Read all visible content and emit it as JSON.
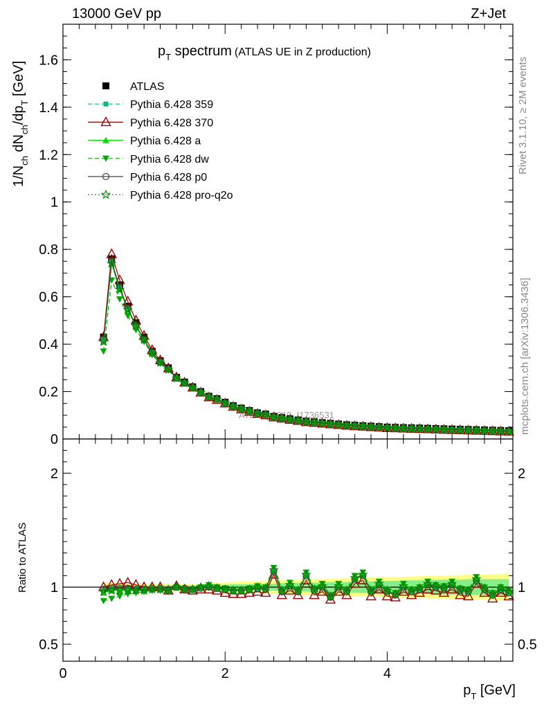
{
  "header": {
    "left": "13000 GeV pp",
    "right": "Z+Jet"
  },
  "title": {
    "main": "p",
    "main_sub": "T",
    "main_rest": " spectrum",
    "sub": "(ATLAS UE in Z production)"
  },
  "side": {
    "top": "Rivet 3.1.10, ≥ 2M events",
    "bottom": "mcplots.cern.ch [arXiv:1306.3436]"
  },
  "watermark": "ATLAS_2019_I1736531",
  "ylabel_main": {
    "a": "1/N",
    "a_sub": "ch",
    "b": " dN",
    "b_sub": "ch",
    "c": "/dp",
    "c_sub": "T",
    "d": " [GeV]"
  },
  "ylabel_ratio": "Ratio to ATLAS",
  "xlabel": {
    "a": "p",
    "a_sub": "T",
    "b": " [GeV]"
  },
  "legend": [
    {
      "label": "ATLAS",
      "color": "#000000",
      "marker": "square-filled",
      "line": "none"
    },
    {
      "label": "Pythia 6.428 359",
      "color": "#00bb88",
      "marker": "square-small",
      "line": "dashed"
    },
    {
      "label": "Pythia 6.428 370",
      "color": "#990000",
      "marker": "triangle-open",
      "line": "solid"
    },
    {
      "label": "Pythia 6.428 a",
      "color": "#00dd00",
      "marker": "triangle-filled",
      "line": "solid"
    },
    {
      "label": "Pythia 6.428 dw",
      "color": "#00aa00",
      "marker": "triangle-down-filled",
      "line": "dashed"
    },
    {
      "label": "Pythia 6.428 p0",
      "color": "#444444",
      "marker": "circle-open",
      "line": "solid"
    },
    {
      "label": "Pythia 6.428 pro-q2o",
      "color": "#008800",
      "marker": "star-open",
      "line": "dotted"
    }
  ],
  "chart_data": [
    {
      "type": "line",
      "xlim": [
        0,
        5.55
      ],
      "ylim": [
        0,
        1.75
      ],
      "yticks": [
        0,
        0.2,
        0.4,
        0.6,
        0.8,
        1,
        1.2,
        1.4,
        1.6
      ],
      "ytick_labels": [
        "0",
        "0.2",
        "0.4",
        "0.6",
        "0.8",
        "1",
        "1.2",
        "1.4",
        "1.6"
      ],
      "x": [
        0.5,
        0.6,
        0.7,
        0.8,
        0.9,
        1.0,
        1.1,
        1.2,
        1.3,
        1.4,
        1.5,
        1.6,
        1.7,
        1.8,
        1.9,
        2.0,
        2.1,
        2.2,
        2.3,
        2.4,
        2.5,
        2.6,
        2.7,
        2.8,
        2.9,
        3.0,
        3.1,
        3.2,
        3.3,
        3.4,
        3.5,
        3.6,
        3.7,
        3.8,
        3.9,
        4.0,
        4.1,
        4.2,
        4.3,
        4.4,
        4.5,
        4.6,
        4.7,
        4.8,
        4.9,
        5.0,
        5.1,
        5.2,
        5.3,
        5.4,
        5.5
      ],
      "series": [
        {
          "name": "ATLAS",
          "values": [
            0.43,
            0.76,
            0.65,
            0.56,
            0.49,
            0.43,
            0.37,
            0.33,
            0.3,
            0.26,
            0.24,
            0.22,
            0.2,
            0.18,
            0.17,
            0.155,
            0.14,
            0.13,
            0.12,
            0.11,
            0.105,
            0.095,
            0.09,
            0.085,
            0.08,
            0.075,
            0.072,
            0.069,
            0.066,
            0.063,
            0.06,
            0.058,
            0.056,
            0.054,
            0.052,
            0.05,
            0.049,
            0.048,
            0.047,
            0.046,
            0.045,
            0.044,
            0.043,
            0.042,
            0.041,
            0.04,
            0.039,
            0.038,
            0.037,
            0.036,
            0.035
          ]
        },
        {
          "name": "Pythia 6.428 359",
          "values": [
            0.42,
            0.75,
            0.64,
            0.55,
            0.48,
            0.42,
            0.365,
            0.325,
            0.295,
            0.258,
            0.238,
            0.218,
            0.198,
            0.178,
            0.168,
            0.152,
            0.138,
            0.128,
            0.118,
            0.108,
            0.103,
            0.093,
            0.088,
            0.083,
            0.078,
            0.073,
            0.07,
            0.067,
            0.064,
            0.061,
            0.058,
            0.056,
            0.054,
            0.052,
            0.05,
            0.048,
            0.047,
            0.046,
            0.045,
            0.044,
            0.043,
            0.042,
            0.041,
            0.04,
            0.039,
            0.038,
            0.037,
            0.036,
            0.035,
            0.034,
            0.033
          ]
        },
        {
          "name": "Pythia 6.428 370",
          "values": [
            0.43,
            0.78,
            0.67,
            0.58,
            0.5,
            0.435,
            0.375,
            0.332,
            0.298,
            0.26,
            0.238,
            0.217,
            0.196,
            0.176,
            0.165,
            0.15,
            0.136,
            0.125,
            0.115,
            0.106,
            0.1,
            0.091,
            0.086,
            0.081,
            0.076,
            0.071,
            0.068,
            0.065,
            0.062,
            0.059,
            0.056,
            0.054,
            0.052,
            0.05,
            0.048,
            0.046,
            0.045,
            0.044,
            0.043,
            0.042,
            0.041,
            0.04,
            0.039,
            0.038,
            0.037,
            0.036,
            0.035,
            0.034,
            0.033,
            0.032,
            0.031
          ]
        },
        {
          "name": "Pythia 6.428 a",
          "values": [
            0.41,
            0.74,
            0.63,
            0.545,
            0.475,
            0.418,
            0.362,
            0.322,
            0.293,
            0.256,
            0.236,
            0.216,
            0.196,
            0.177,
            0.167,
            0.151,
            0.137,
            0.127,
            0.117,
            0.107,
            0.102,
            0.092,
            0.087,
            0.082,
            0.077,
            0.072,
            0.069,
            0.066,
            0.063,
            0.06,
            0.057,
            0.055,
            0.053,
            0.051,
            0.049,
            0.047,
            0.046,
            0.045,
            0.044,
            0.043,
            0.042,
            0.041,
            0.04,
            0.039,
            0.038,
            0.037,
            0.036,
            0.035,
            0.034,
            0.033,
            0.032
          ]
        },
        {
          "name": "Pythia 6.428 dw",
          "values": [
            0.37,
            0.67,
            0.59,
            0.52,
            0.46,
            0.41,
            0.355,
            0.318,
            0.29,
            0.254,
            0.234,
            0.214,
            0.194,
            0.175,
            0.165,
            0.15,
            0.136,
            0.126,
            0.116,
            0.106,
            0.101,
            0.091,
            0.086,
            0.081,
            0.076,
            0.071,
            0.068,
            0.065,
            0.062,
            0.059,
            0.056,
            0.054,
            0.052,
            0.05,
            0.048,
            0.046,
            0.045,
            0.044,
            0.043,
            0.042,
            0.041,
            0.04,
            0.039,
            0.038,
            0.037,
            0.036,
            0.035,
            0.034,
            0.033,
            0.032,
            0.031
          ]
        },
        {
          "name": "Pythia 6.428 p0",
          "values": [
            0.42,
            0.75,
            0.64,
            0.55,
            0.48,
            0.42,
            0.365,
            0.325,
            0.295,
            0.258,
            0.237,
            0.217,
            0.197,
            0.178,
            0.168,
            0.152,
            0.138,
            0.128,
            0.118,
            0.108,
            0.103,
            0.093,
            0.088,
            0.083,
            0.078,
            0.073,
            0.07,
            0.067,
            0.064,
            0.061,
            0.058,
            0.056,
            0.054,
            0.052,
            0.05,
            0.048,
            0.047,
            0.046,
            0.045,
            0.044,
            0.043,
            0.042,
            0.041,
            0.04,
            0.039,
            0.038,
            0.037,
            0.036,
            0.035,
            0.034,
            0.033
          ]
        },
        {
          "name": "Pythia 6.428 pro-q2o",
          "values": [
            0.41,
            0.74,
            0.63,
            0.545,
            0.476,
            0.418,
            0.362,
            0.322,
            0.293,
            0.256,
            0.236,
            0.216,
            0.196,
            0.177,
            0.167,
            0.151,
            0.137,
            0.127,
            0.117,
            0.107,
            0.102,
            0.092,
            0.087,
            0.082,
            0.077,
            0.072,
            0.069,
            0.066,
            0.063,
            0.06,
            0.057,
            0.055,
            0.053,
            0.051,
            0.049,
            0.047,
            0.046,
            0.045,
            0.044,
            0.043,
            0.042,
            0.041,
            0.04,
            0.039,
            0.038,
            0.037,
            0.036,
            0.035,
            0.034,
            0.033,
            0.032
          ]
        }
      ]
    },
    {
      "type": "line",
      "xlim": [
        0,
        5.55
      ],
      "ylim": [
        0.35,
        2.3
      ],
      "yticks": [
        0.5,
        1,
        2
      ],
      "ytick_labels": [
        "0.5",
        "1",
        "2"
      ],
      "xticks": [
        0,
        2,
        4
      ],
      "xtick_labels": [
        "0",
        "2",
        "4"
      ],
      "reference_line": 1,
      "band_outer": {
        "lo": [
          0.96,
          0.965,
          0.965,
          0.97,
          0.97,
          0.97,
          0.97,
          0.97,
          0.97,
          0.97,
          0.97,
          0.97,
          0.97,
          0.97,
          0.96,
          0.96,
          0.955,
          0.95,
          0.95,
          0.95,
          0.945,
          0.94,
          0.94,
          0.935,
          0.935,
          0.93,
          0.93,
          0.93,
          0.925,
          0.925,
          0.92,
          0.92,
          0.92,
          0.915,
          0.915,
          0.91,
          0.91,
          0.91,
          0.905,
          0.905,
          0.9,
          0.9,
          0.9,
          0.895,
          0.895,
          0.89,
          0.89,
          0.89,
          0.885,
          0.885,
          0.88
        ],
        "hi": [
          1.04,
          1.035,
          1.035,
          1.03,
          1.03,
          1.03,
          1.03,
          1.03,
          1.03,
          1.03,
          1.03,
          1.03,
          1.03,
          1.03,
          1.04,
          1.04,
          1.045,
          1.05,
          1.05,
          1.05,
          1.055,
          1.06,
          1.06,
          1.065,
          1.065,
          1.07,
          1.07,
          1.07,
          1.075,
          1.075,
          1.08,
          1.08,
          1.08,
          1.085,
          1.085,
          1.09,
          1.09,
          1.09,
          1.095,
          1.095,
          1.1,
          1.1,
          1.1,
          1.105,
          1.105,
          1.11,
          1.11,
          1.11,
          1.115,
          1.115,
          1.12
        ]
      },
      "band_inner": {
        "lo": [
          0.98,
          0.985,
          0.985,
          0.985,
          0.985,
          0.985,
          0.985,
          0.985,
          0.985,
          0.985,
          0.985,
          0.985,
          0.985,
          0.98,
          0.98,
          0.98,
          0.975,
          0.975,
          0.975,
          0.97,
          0.97,
          0.97,
          0.965,
          0.965,
          0.965,
          0.96,
          0.96,
          0.96,
          0.955,
          0.955,
          0.955,
          0.95,
          0.95,
          0.95,
          0.945,
          0.945,
          0.945,
          0.94,
          0.94,
          0.94,
          0.94,
          0.935,
          0.935,
          0.935,
          0.935,
          0.93,
          0.93,
          0.93,
          0.93,
          0.93,
          0.93
        ],
        "hi": [
          1.02,
          1.015,
          1.015,
          1.015,
          1.015,
          1.015,
          1.015,
          1.015,
          1.015,
          1.015,
          1.015,
          1.015,
          1.015,
          1.02,
          1.02,
          1.02,
          1.025,
          1.025,
          1.025,
          1.03,
          1.03,
          1.03,
          1.035,
          1.035,
          1.035,
          1.04,
          1.04,
          1.04,
          1.045,
          1.045,
          1.045,
          1.05,
          1.05,
          1.05,
          1.055,
          1.055,
          1.055,
          1.06,
          1.06,
          1.06,
          1.06,
          1.065,
          1.065,
          1.065,
          1.065,
          1.07,
          1.07,
          1.07,
          1.07,
          1.07,
          1.07
        ]
      },
      "series": [
        {
          "name": "Pythia 6.428 359",
          "values": [
            0.97,
            0.98,
            0.98,
            0.98,
            0.98,
            0.97,
            0.98,
            0.98,
            0.96,
            1.0,
            0.98,
            0.97,
            0.99,
            1.0,
            0.98,
            0.97,
            0.96,
            0.96,
            0.97,
            0.99,
            0.98,
            1.14,
            0.96,
            1.01,
            0.96,
            1.1,
            0.97,
            1.0,
            0.91,
            1.0,
            0.96,
            1.07,
            1.1,
            0.96,
            1.02,
            0.96,
            0.93,
            1.0,
            0.96,
            0.98,
            1.02,
            1.0,
            0.99,
            1.02,
            0.97,
            0.96,
            1.06,
            0.98,
            0.93,
            0.98,
            0.95
          ]
        },
        {
          "name": "Pythia 6.428 370",
          "values": [
            1.0,
            1.02,
            1.03,
            1.04,
            1.02,
            1.0,
            1.0,
            1.0,
            0.97,
            1.01,
            0.98,
            0.97,
            0.98,
            0.98,
            0.97,
            0.95,
            0.94,
            0.94,
            0.95,
            0.96,
            0.95,
            1.11,
            0.93,
            0.97,
            0.93,
            1.06,
            0.93,
            0.96,
            0.89,
            0.96,
            0.93,
            1.03,
            1.06,
            0.92,
            0.98,
            0.92,
            0.91,
            0.96,
            0.93,
            0.95,
            0.98,
            0.97,
            0.95,
            0.98,
            0.93,
            0.92,
            1.03,
            0.95,
            0.9,
            0.95,
            0.92
          ]
        },
        {
          "name": "Pythia 6.428 a",
          "values": [
            0.95,
            0.97,
            0.97,
            0.97,
            0.97,
            0.97,
            0.98,
            0.98,
            0.97,
            1.0,
            0.98,
            0.98,
            1.0,
            1.01,
            0.99,
            0.98,
            0.97,
            0.97,
            0.98,
            1.0,
            0.99,
            1.15,
            0.97,
            1.02,
            0.97,
            1.11,
            0.98,
            1.01,
            0.92,
            1.01,
            0.97,
            1.08,
            1.11,
            0.97,
            1.03,
            0.97,
            0.94,
            1.01,
            0.97,
            0.99,
            1.03,
            1.01,
            1.0,
            1.03,
            0.98,
            0.97,
            1.07,
            0.99,
            0.94,
            0.99,
            0.96
          ]
        },
        {
          "name": "Pythia 6.428 dw",
          "values": [
            0.88,
            0.9,
            0.92,
            0.94,
            0.95,
            0.96,
            0.97,
            0.97,
            0.97,
            1.0,
            0.98,
            0.98,
            1.0,
            1.02,
            1.0,
            0.99,
            0.98,
            0.98,
            0.99,
            1.01,
            1.0,
            1.17,
            0.98,
            1.04,
            0.98,
            1.13,
            0.99,
            1.03,
            0.93,
            1.03,
            0.98,
            1.1,
            1.13,
            0.98,
            1.05,
            0.98,
            0.95,
            1.03,
            0.98,
            1.0,
            1.05,
            1.02,
            1.01,
            1.05,
            0.99,
            0.98,
            1.09,
            1.0,
            0.95,
            1.0,
            0.97
          ]
        },
        {
          "name": "Pythia 6.428 p0",
          "values": [
            0.98,
            0.99,
            0.99,
            0.99,
            0.98,
            0.98,
            0.99,
            0.99,
            0.97,
            1.0,
            0.99,
            0.98,
            0.99,
            1.0,
            0.99,
            0.98,
            0.97,
            0.97,
            0.98,
            0.99,
            0.98,
            1.14,
            0.96,
            1.01,
            0.96,
            1.1,
            0.97,
            1.0,
            0.91,
            1.0,
            0.96,
            1.07,
            1.1,
            0.96,
            1.02,
            0.96,
            0.93,
            1.0,
            0.96,
            0.98,
            1.02,
            1.0,
            0.99,
            1.02,
            0.97,
            0.96,
            1.06,
            0.98,
            0.93,
            0.98,
            0.95
          ]
        },
        {
          "name": "Pythia 6.428 pro-q2o",
          "values": [
            0.96,
            0.97,
            0.97,
            0.97,
            0.97,
            0.97,
            0.98,
            0.98,
            0.97,
            1.0,
            0.98,
            0.98,
            1.0,
            1.01,
            0.99,
            0.98,
            0.97,
            0.97,
            0.98,
            1.0,
            0.99,
            1.15,
            0.97,
            1.02,
            0.97,
            1.11,
            0.98,
            1.01,
            0.92,
            1.01,
            0.97,
            1.08,
            1.11,
            0.97,
            1.03,
            0.97,
            0.94,
            1.01,
            0.97,
            0.99,
            1.03,
            1.01,
            1.0,
            1.03,
            0.98,
            0.97,
            1.07,
            0.99,
            0.94,
            0.99,
            0.96
          ]
        }
      ]
    }
  ]
}
